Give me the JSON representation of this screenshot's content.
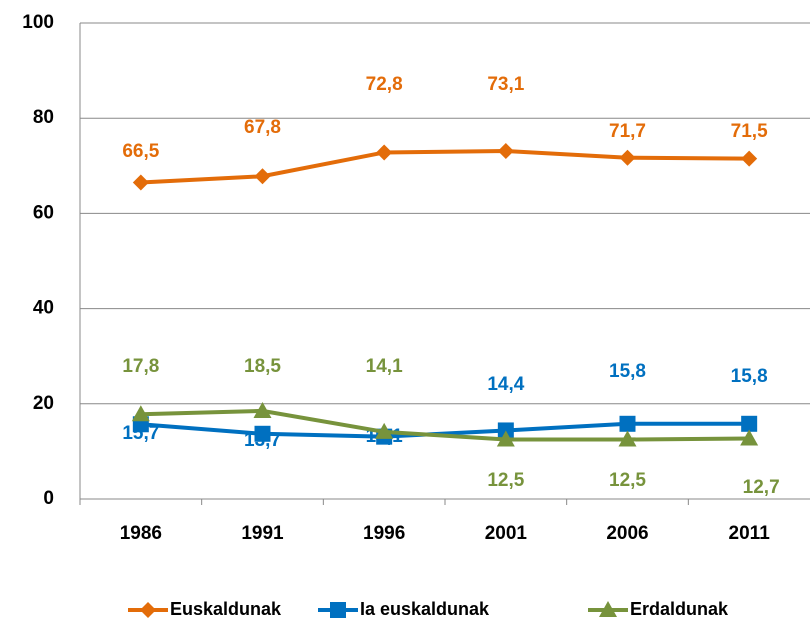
{
  "chart_data": {
    "type": "line",
    "categories": [
      "1986",
      "1991",
      "1996",
      "2001",
      "2006",
      "2011"
    ],
    "series": [
      {
        "name": "Euskaldunak",
        "color": "#e36c09",
        "marker": "diamond",
        "values": [
          66.5,
          67.8,
          72.8,
          73.1,
          71.7,
          71.5
        ],
        "value_labels": [
          "66,5",
          "67,8",
          "72,8",
          "73,1",
          "71,7",
          "71,5"
        ]
      },
      {
        "name": "Ia euskaldunak",
        "color": "#0070c0",
        "marker": "square",
        "values": [
          15.7,
          13.7,
          13.1,
          14.4,
          15.8,
          15.8
        ],
        "value_labels": [
          "15,7",
          "13,7",
          "13,1",
          "14,4",
          "15,8",
          "15,8"
        ]
      },
      {
        "name": "Erdaldunak",
        "color": "#77933c",
        "marker": "triangle",
        "values": [
          17.8,
          18.5,
          14.1,
          12.5,
          12.5,
          12.7
        ],
        "value_labels": [
          "17,8",
          "18,5",
          "14,1",
          "12,5",
          "12,5",
          "12,7"
        ]
      }
    ],
    "ylim": [
      0,
      100
    ],
    "yticks": [
      0,
      20,
      40,
      60,
      80,
      100
    ],
    "grid": true,
    "legend": "bottom"
  }
}
